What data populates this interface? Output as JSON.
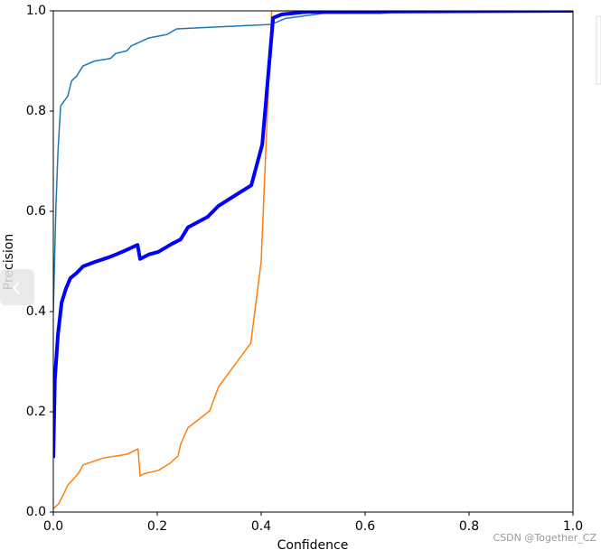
{
  "chart_data": {
    "type": "line",
    "xlabel": "Confidence",
    "ylabel": "Precision",
    "xlim": [
      0,
      1
    ],
    "ylim": [
      0,
      1
    ],
    "xticks": [
      {
        "value": 0,
        "label": "0.0"
      },
      0.2,
      0.4,
      0.6,
      0.8,
      {
        "value": 1,
        "label": "1.0"
      }
    ],
    "yticks": [
      {
        "value": 0,
        "label": "0.0"
      },
      0.2,
      0.4,
      0.6,
      0.8,
      {
        "value": 1,
        "label": "1.0"
      }
    ],
    "series": [
      {
        "color": "#1f77b4",
        "width": 1.5,
        "x": [
          0,
          0.005,
          0.009,
          0.014,
          0.028,
          0.035,
          0.045,
          0.057,
          0.08,
          0.11,
          0.12,
          0.141,
          0.15,
          0.184,
          0.219,
          0.237,
          0.42,
          0.447,
          0.52,
          0.63,
          0.68,
          1.0
        ],
        "values": [
          0.4,
          0.61,
          0.72,
          0.81,
          0.83,
          0.86,
          0.87,
          0.89,
          0.9,
          0.905,
          0.915,
          0.92,
          0.93,
          0.946,
          0.953,
          0.964,
          0.973,
          0.985,
          0.995,
          0.995,
          1.0,
          1.0
        ]
      },
      {
        "color": "#ff7f0e",
        "width": 1.5,
        "x": [
          0,
          0.01,
          0.019,
          0.028,
          0.04,
          0.05,
          0.057,
          0.071,
          0.097,
          0.141,
          0.163,
          0.167,
          0.176,
          0.202,
          0.224,
          0.24,
          0.245,
          0.259,
          0.301,
          0.318,
          0.38,
          0.4,
          0.42,
          1.0
        ],
        "values": [
          0.007,
          0.016,
          0.034,
          0.054,
          0.067,
          0.08,
          0.094,
          0.099,
          0.108,
          0.115,
          0.126,
          0.072,
          0.077,
          0.083,
          0.097,
          0.112,
          0.135,
          0.168,
          0.202,
          0.25,
          0.337,
          0.5,
          1.0,
          1.0
        ]
      },
      {
        "color": "#0000ff",
        "width": 4,
        "x": [
          0,
          0.003,
          0.009,
          0.016,
          0.024,
          0.033,
          0.045,
          0.057,
          0.08,
          0.106,
          0.123,
          0.141,
          0.162,
          0.167,
          0.184,
          0.202,
          0.228,
          0.245,
          0.259,
          0.297,
          0.318,
          0.381,
          0.402,
          0.423,
          0.44,
          0.489,
          1.0
        ],
        "values": [
          0.108,
          0.265,
          0.355,
          0.418,
          0.445,
          0.467,
          0.477,
          0.49,
          0.499,
          0.508,
          0.515,
          0.523,
          0.533,
          0.505,
          0.514,
          0.519,
          0.535,
          0.544,
          0.568,
          0.589,
          0.611,
          0.652,
          0.733,
          0.986,
          0.993,
          0.998,
          1.0
        ]
      }
    ],
    "watermark": "CSDN @Together_CZ"
  }
}
